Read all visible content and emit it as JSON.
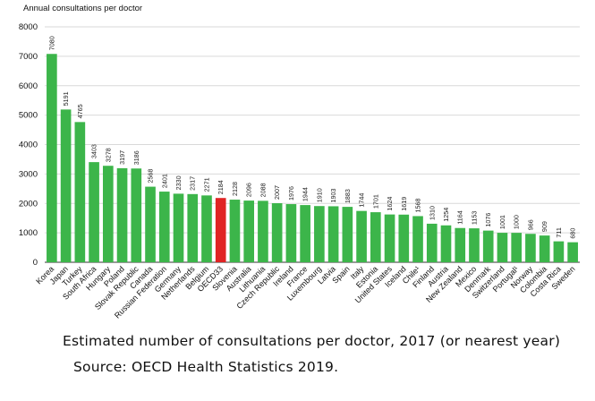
{
  "chart_data": {
    "type": "bar",
    "ylabel": "Annual consultations per doctor",
    "ylim": [
      0,
      8000
    ],
    "yticks": [
      0,
      1000,
      2000,
      3000,
      4000,
      5000,
      6000,
      7000,
      8000
    ],
    "grid": true,
    "categories": [
      "Korea",
      "Japan",
      "Turkey",
      "South Africa",
      "Hungary",
      "Poland",
      "Slovak Republic",
      "Canada",
      "Russian Federation",
      "Germany",
      "Netherlands",
      "Belgium",
      "OECD33",
      "Slovenia",
      "Australia",
      "Lithuania",
      "Czech Republic",
      "Ireland",
      "France",
      "Luxembourg",
      "Latvia",
      "Spain",
      "Italy",
      "Estonia",
      "United States",
      "Iceland",
      "Chile¹",
      "Finland",
      "Austria",
      "New Zealand",
      "Mexico",
      "Denmark",
      "Switzerland",
      "Portugal¹",
      "Norway",
      "Colombia",
      "Costa Rica",
      "Sweden"
    ],
    "values": [
      7080,
      5191,
      4765,
      3403,
      3278,
      3197,
      3186,
      2568,
      2401,
      2330,
      2317,
      2271,
      2184,
      2128,
      2096,
      2088,
      2007,
      1976,
      1944,
      1910,
      1903,
      1883,
      1744,
      1701,
      1624,
      1619,
      1568,
      1310,
      1254,
      1164,
      1153,
      1076,
      1001,
      1000,
      966,
      909,
      711,
      680
    ],
    "highlight": "OECD33",
    "colors": {
      "bar": "#3cb54a",
      "highlight": "#e02424",
      "grid": "#d9d9d9",
      "axis": "#333333"
    }
  },
  "caption": "Estimated number of consultations per doctor, 2017 (or nearest year)",
  "source": "Source: OECD Health Statistics 2019."
}
